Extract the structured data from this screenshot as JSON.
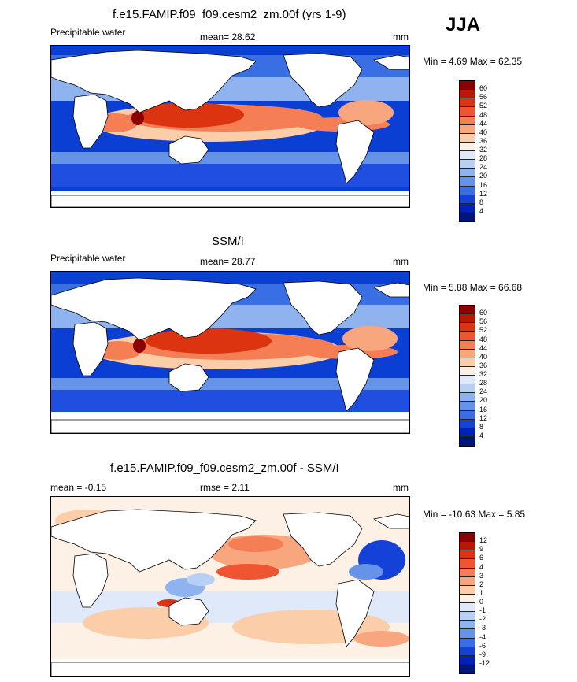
{
  "season": "JJA",
  "panels": [
    {
      "title": "f.e15.FAMIP.f09_f09.cesm2_zm.00f (yrs 1-9)",
      "left_label": "Precipitable water",
      "center_label": "mean=  28.62",
      "units": "mm",
      "minmax": "Min =   4.69 Max =  62.35"
    },
    {
      "title": "SSM/I",
      "left_label": "Precipitable water",
      "center_label": "mean=  28.77",
      "units": "mm",
      "minmax": "Min =   5.88 Max =  66.68"
    },
    {
      "title": "f.e15.FAMIP.f09_f09.cesm2_zm.00f - SSM/I",
      "left_label": "mean =  -0.15",
      "center_label": "rmse =   2.11",
      "units": "mm",
      "minmax": "Min = -10.63 Max =   5.85"
    }
  ],
  "colorbars": {
    "absolute": {
      "labels": [
        "60",
        "56",
        "52",
        "48",
        "44",
        "40",
        "36",
        "32",
        "28",
        "24",
        "20",
        "16",
        "12",
        "8",
        "4"
      ],
      "colors": [
        "#8b0000",
        "#b81800",
        "#dc3410",
        "#ee5530",
        "#f57e55",
        "#f8a67e",
        "#fbcda8",
        "#fdf0e4",
        "#dfe9fa",
        "#b8d0f4",
        "#8fb3ef",
        "#6593e8",
        "#3a6ee3",
        "#1442d8",
        "#0023b5",
        "#00157a"
      ]
    },
    "difference": {
      "labels": [
        "12",
        "9",
        "6",
        "4",
        "3",
        "2",
        "1",
        "0",
        "-1",
        "-2",
        "-3",
        "-4",
        "-6",
        "-9",
        "-12"
      ],
      "colors": [
        "#8b0000",
        "#b81800",
        "#dc3410",
        "#ee5530",
        "#f57e55",
        "#f8a67e",
        "#fbcda8",
        "#fdf0e4",
        "#dfe9fa",
        "#b8d0f4",
        "#8fb3ef",
        "#6593e8",
        "#3a6ee3",
        "#1442d8",
        "#0023b5",
        "#00157a"
      ]
    }
  }
}
